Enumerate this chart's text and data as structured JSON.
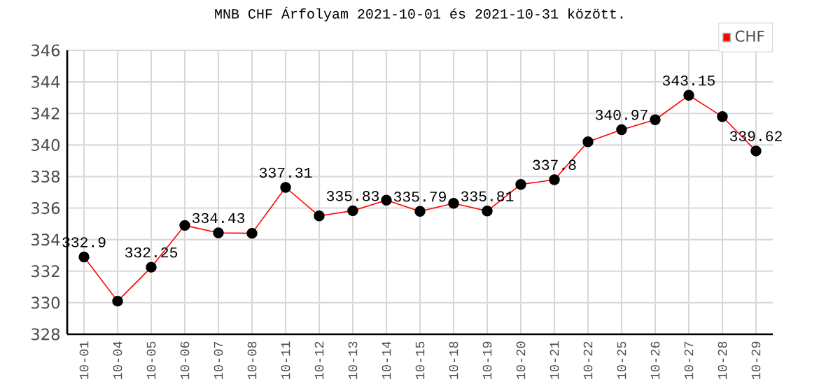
{
  "chart_data": {
    "type": "line",
    "title": "MNB CHF Árfolyam 2021-10-01 és 2021-10-31 között.",
    "categories": [
      "10-01",
      "10-04",
      "10-05",
      "10-06",
      "10-07",
      "10-08",
      "10-11",
      "10-12",
      "10-13",
      "10-14",
      "10-15",
      "10-18",
      "10-19",
      "10-20",
      "10-21",
      "10-22",
      "10-25",
      "10-26",
      "10-27",
      "10-28",
      "10-29"
    ],
    "series": [
      {
        "name": "CHF",
        "color": "#ff0000",
        "values": [
          332.9,
          330.1,
          332.25,
          334.9,
          334.43,
          334.4,
          337.31,
          335.5,
          335.83,
          336.5,
          335.79,
          336.3,
          335.81,
          337.5,
          337.8,
          340.2,
          340.97,
          341.6,
          343.15,
          341.8,
          339.62
        ],
        "value_labels": [
          "332.9",
          null,
          "332.25",
          null,
          "334.43",
          null,
          "337.31",
          null,
          "335.83",
          null,
          "335.79",
          null,
          "335.81",
          null,
          "337.8",
          null,
          "340.97",
          null,
          "343.15",
          null,
          "339.62"
        ]
      }
    ],
    "ylim": [
      328,
      346
    ],
    "yticks": [
      328,
      330,
      332,
      334,
      336,
      338,
      340,
      342,
      344,
      346
    ],
    "grid": true,
    "legend": "top right",
    "marker": "circle",
    "line_style": "solid"
  }
}
